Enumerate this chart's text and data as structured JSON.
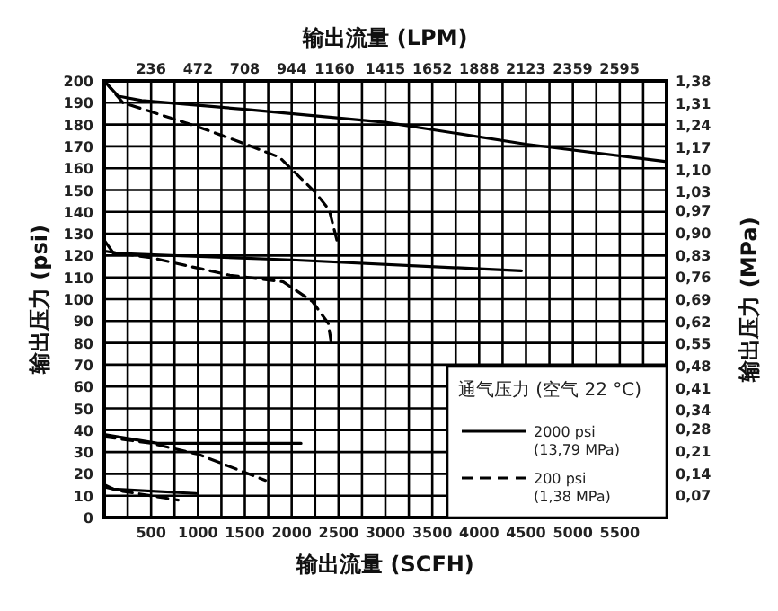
{
  "chart_data": {
    "type": "line",
    "xlabel": "输出流量 (SCFH)",
    "x2label": "输出流量 (LPM)",
    "ylabel": "输出压力 (psi)",
    "y2label": "输出压力 (MPa)",
    "legend_title": "通气压力 (空气 22 °C)",
    "legend": "bottom right",
    "grid": true,
    "marker": "none",
    "xlim": [
      0,
      6000
    ],
    "xticks": [
      {
        "value": 250,
        "label": null
      },
      500,
      {
        "value": 750,
        "label": null
      },
      1000,
      {
        "value": 1250,
        "label": null
      },
      1500,
      {
        "value": 1750,
        "label": null
      },
      2000,
      {
        "value": 2250,
        "label": null
      },
      2500,
      {
        "value": 2750,
        "label": null
      },
      3000,
      {
        "value": 3250,
        "label": null
      },
      3500,
      {
        "value": 3750,
        "label": null
      },
      4000,
      {
        "value": 4250,
        "label": null
      },
      4500,
      {
        "value": 4750,
        "label": null
      },
      5000,
      {
        "value": 5250,
        "label": null
      },
      5500,
      {
        "value": 5750,
        "label": null
      }
    ],
    "x2lim": [
      0,
      2832
    ],
    "x2ticks": [
      236,
      472,
      708,
      944,
      1160,
      1415,
      1652,
      1888,
      2123,
      2359,
      2595
    ],
    "ylim": [
      0,
      200
    ],
    "yticks": [
      0,
      10,
      20,
      30,
      40,
      50,
      60,
      70,
      80,
      90,
      100,
      110,
      120,
      130,
      140,
      150,
      160,
      170,
      180,
      190,
      200
    ],
    "y2lim": [
      0,
      1.38
    ],
    "y2ticks": [
      {
        "value": 0.07,
        "label": "0,07"
      },
      {
        "value": 0.14,
        "label": "0,14"
      },
      {
        "value": 0.21,
        "label": "0,21"
      },
      {
        "value": 0.28,
        "label": "0,28"
      },
      {
        "value": 0.34,
        "label": "0,34"
      },
      {
        "value": 0.41,
        "label": "0,41"
      },
      {
        "value": 0.48,
        "label": "0,48"
      },
      {
        "value": 0.55,
        "label": "0,55"
      },
      {
        "value": 0.62,
        "label": "0,62"
      },
      {
        "value": 0.69,
        "label": "0,69"
      },
      {
        "value": 0.76,
        "label": "0,76"
      },
      {
        "value": 0.83,
        "label": "0,83"
      },
      {
        "value": 0.9,
        "label": "0,90"
      },
      {
        "value": 0.97,
        "label": "0,97"
      },
      {
        "value": 1.03,
        "label": "1,03"
      },
      {
        "value": 1.1,
        "label": "1,10"
      },
      {
        "value": 1.17,
        "label": "1,17"
      },
      {
        "value": 1.24,
        "label": "1,24"
      },
      {
        "value": 1.31,
        "label": "1,31"
      },
      {
        "value": 1.38,
        "label": "1,38"
      }
    ],
    "series": [
      {
        "name": "2000 psi (13,79 MPa)",
        "color": "#000000",
        "line_style": "solid",
        "x": [
          0,
          150,
          400,
          1500,
          3000,
          4500,
          6000
        ],
        "values": [
          200,
          193,
          191,
          187,
          181,
          171,
          163
        ]
      },
      {
        "name": "200 psi (1,38 MPa)",
        "color": "#000000",
        "line_style": "dashed",
        "x": [
          0,
          200,
          1000,
          1510,
          1870,
          2250,
          2400,
          2500
        ],
        "values": [
          200,
          190,
          179,
          171,
          165,
          149,
          141,
          124
        ]
      },
      {
        "color": "#000000",
        "line_style": "solid",
        "x": [
          0,
          100,
          2000,
          4450
        ],
        "values": [
          127,
          121,
          118,
          113
        ]
      },
      {
        "color": "#000000",
        "line_style": "dashed",
        "x": [
          0,
          500,
          1340,
          1910,
          2220,
          2390,
          2430
        ],
        "values": [
          122,
          119,
          111,
          108,
          99,
          89,
          78
        ]
      },
      {
        "color": "#000000",
        "line_style": "solid",
        "x": [
          0,
          570,
          2100
        ],
        "values": [
          38,
          34,
          34
        ]
      },
      {
        "color": "#000000",
        "line_style": "dashed",
        "x": [
          0,
          500,
          1000,
          1720
        ],
        "values": [
          37,
          34,
          29,
          17
        ]
      },
      {
        "color": "#000000",
        "line_style": "solid",
        "x": [
          0,
          100,
          980
        ],
        "values": [
          15,
          13,
          11
        ]
      },
      {
        "color": "#000000",
        "line_style": "dashed",
        "x": [
          0,
          200,
          790
        ],
        "values": [
          14,
          12,
          8
        ]
      }
    ]
  }
}
